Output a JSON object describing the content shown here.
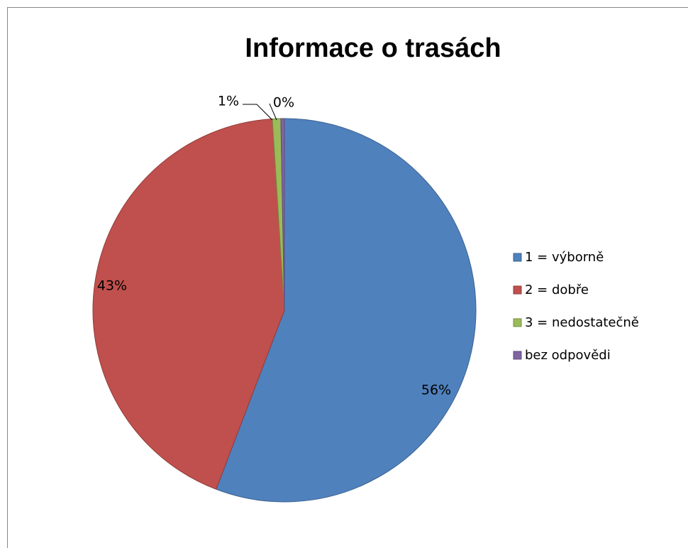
{
  "chart_data": {
    "type": "pie",
    "title": "Informace o trasách",
    "categories": [
      "1 = výborně",
      "2 = dobře",
      "3 = nedostatečně",
      "bez odpovědi"
    ],
    "values": [
      55.8,
      43.2,
      0.7,
      0.3
    ],
    "value_labels": [
      "56%",
      "43%",
      "1%",
      "0%"
    ],
    "colors": [
      "#4f81bd",
      "#c0504d",
      "#9bbb59",
      "#8064a2"
    ],
    "legend": "right"
  }
}
